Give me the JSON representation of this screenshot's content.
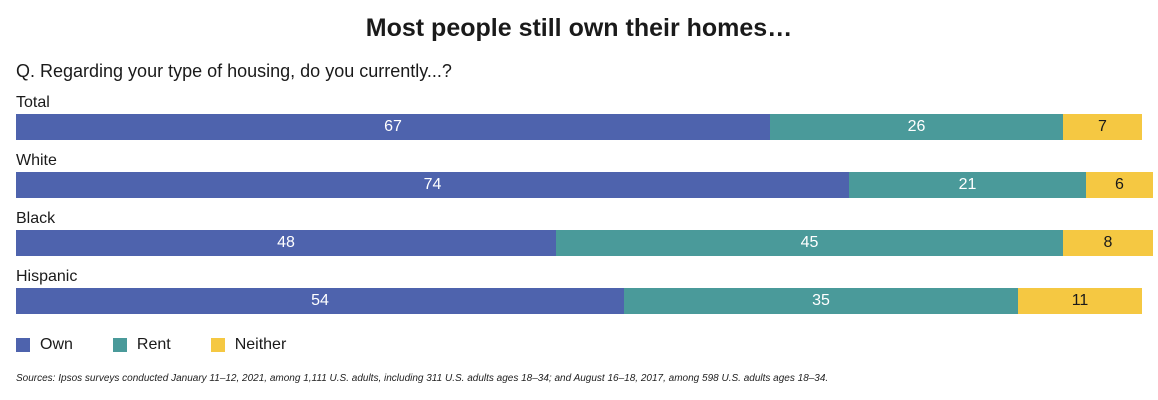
{
  "title": "Most people still own their homes…",
  "question": "Q. Regarding your type of housing, do you currently...?",
  "sources": "Sources: Ipsos surveys conducted January 11–12, 2021, among 1,111 U.S. adults, including 311 U.S. adults ages 18–34; and August 16–18, 2017, among 598 U.S. adults ages 18–34.",
  "colors": {
    "own": "#4e63ad",
    "rent": "#4a9a9a",
    "neither": "#f5c842"
  },
  "chart_data": {
    "type": "bar",
    "orientation": "horizontal",
    "stacked": true,
    "categories": [
      "Total",
      "White",
      "Black",
      "Hispanic"
    ],
    "series": [
      {
        "name": "Own",
        "values": [
          67,
          74,
          48,
          54
        ]
      },
      {
        "name": "Rent",
        "values": [
          26,
          21,
          45,
          35
        ]
      },
      {
        "name": "Neither",
        "values": [
          7,
          6,
          8,
          11
        ]
      }
    ],
    "xlim": [
      0,
      100
    ],
    "legend": "bottom-left",
    "grid": false
  }
}
